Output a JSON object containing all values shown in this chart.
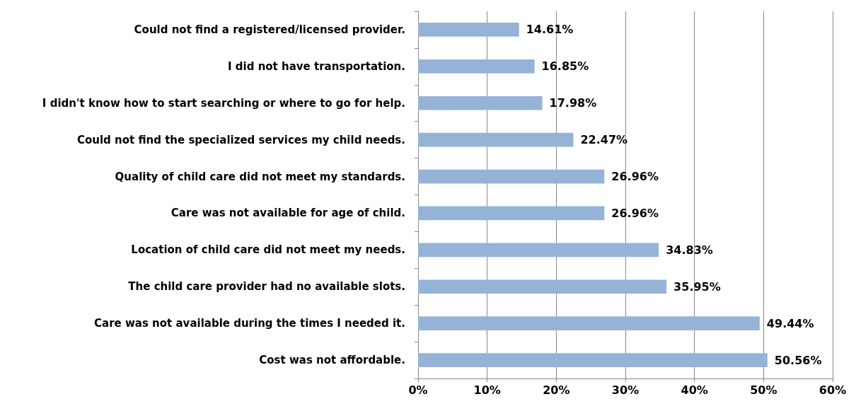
{
  "chart_data": {
    "type": "bar",
    "orientation": "horizontal",
    "categories": [
      "Could not find a registered/licensed provider.",
      "I did not have transportation.",
      "I didn't know how to start searching or where to go for help.",
      "Could not find the specialized services my child needs.",
      "Quality of child care did not meet my standards.",
      "Care was not available for age of child.",
      "Location of child care did not meet my needs.",
      "The child care provider had no available slots.",
      "Care was not available during the times I needed it.",
      "Cost was not affordable."
    ],
    "values": [
      14.61,
      16.85,
      17.98,
      22.47,
      26.96,
      26.96,
      34.83,
      35.95,
      49.44,
      50.56
    ],
    "value_labels": [
      "14.61%",
      "16.85%",
      "17.98%",
      "22.47%",
      "26.96%",
      "26.96%",
      "34.83%",
      "35.95%",
      "49.44%",
      "50.56%"
    ],
    "color": "#95b3d7",
    "xlim": [
      0,
      60
    ],
    "xticks": [
      {
        "value": 0,
        "label": "0%"
      },
      {
        "value": 10,
        "label": "10%"
      },
      {
        "value": 20,
        "label": "20%"
      },
      {
        "value": 30,
        "label": "30%"
      },
      {
        "value": 40,
        "label": "40%"
      },
      {
        "value": 50,
        "label": "50%"
      },
      {
        "value": 60,
        "label": "60%"
      }
    ],
    "grid": "x"
  }
}
